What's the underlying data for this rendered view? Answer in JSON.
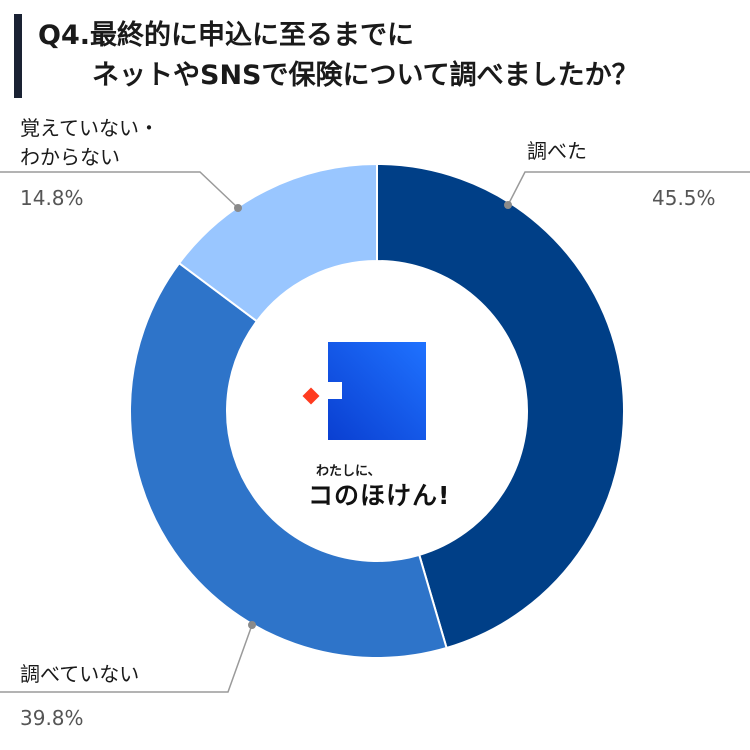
{
  "title": {
    "line1": "Q4.最終的に申込に至るまでに",
    "line2": "ネットやSNSで保険について調べましたか？"
  },
  "logo": {
    "tagline": "わたしに、",
    "name": "コのほけん!"
  },
  "chart_data": {
    "type": "pie",
    "title": "Q4.最終的に申込に至るまでに ネットやSNSで保険について調べましたか？",
    "categories": [
      "調べた",
      "調べていない",
      "覚えていない・わからない"
    ],
    "values": [
      45.5,
      39.8,
      14.8
    ],
    "unit": "%",
    "colors": [
      "#003f87",
      "#2e74c9",
      "#99c6ff"
    ],
    "donut": true
  },
  "labels": {
    "slice1_label": "調べた",
    "slice1_pct": "45.5%",
    "slice2_label": "調べていない",
    "slice2_pct": "39.8%",
    "slice3_label_line1": "覚えていない・",
    "slice3_label_line2": "わからない",
    "slice3_pct": "14.8%"
  }
}
